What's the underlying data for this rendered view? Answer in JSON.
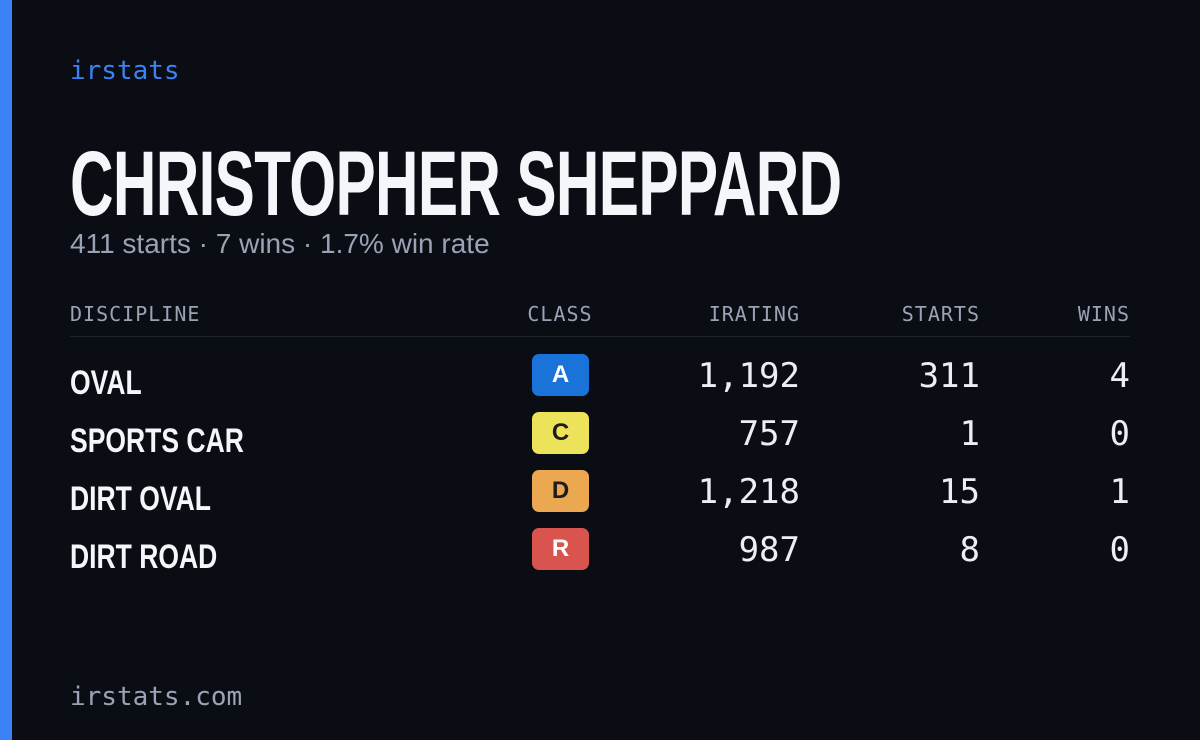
{
  "brand": "irstats",
  "player": {
    "name": "CHRISTOPHER SHEPPARD",
    "summary": "411 starts · 7 wins · 1.7% win rate"
  },
  "table": {
    "headers": [
      "DISCIPLINE",
      "CLASS",
      "IRATING",
      "STARTS",
      "WINS"
    ],
    "rows": [
      {
        "discipline": "OVAL",
        "class": "A",
        "class_color": "#1a73d9",
        "irating": "1,192",
        "starts": 311,
        "wins": 4
      },
      {
        "discipline": "SPORTS CAR",
        "class": "C",
        "class_color": "#ede35a",
        "irating": "757",
        "starts": 1,
        "wins": 0
      },
      {
        "discipline": "DIRT OVAL",
        "class": "D",
        "class_color": "#eca850",
        "irating": "1,218",
        "starts": 15,
        "wins": 1
      },
      {
        "discipline": "DIRT ROAD",
        "class": "R",
        "class_color": "#d9534f",
        "irating": "987",
        "starts": 8,
        "wins": 0
      }
    ]
  },
  "footer": "irstats.com"
}
